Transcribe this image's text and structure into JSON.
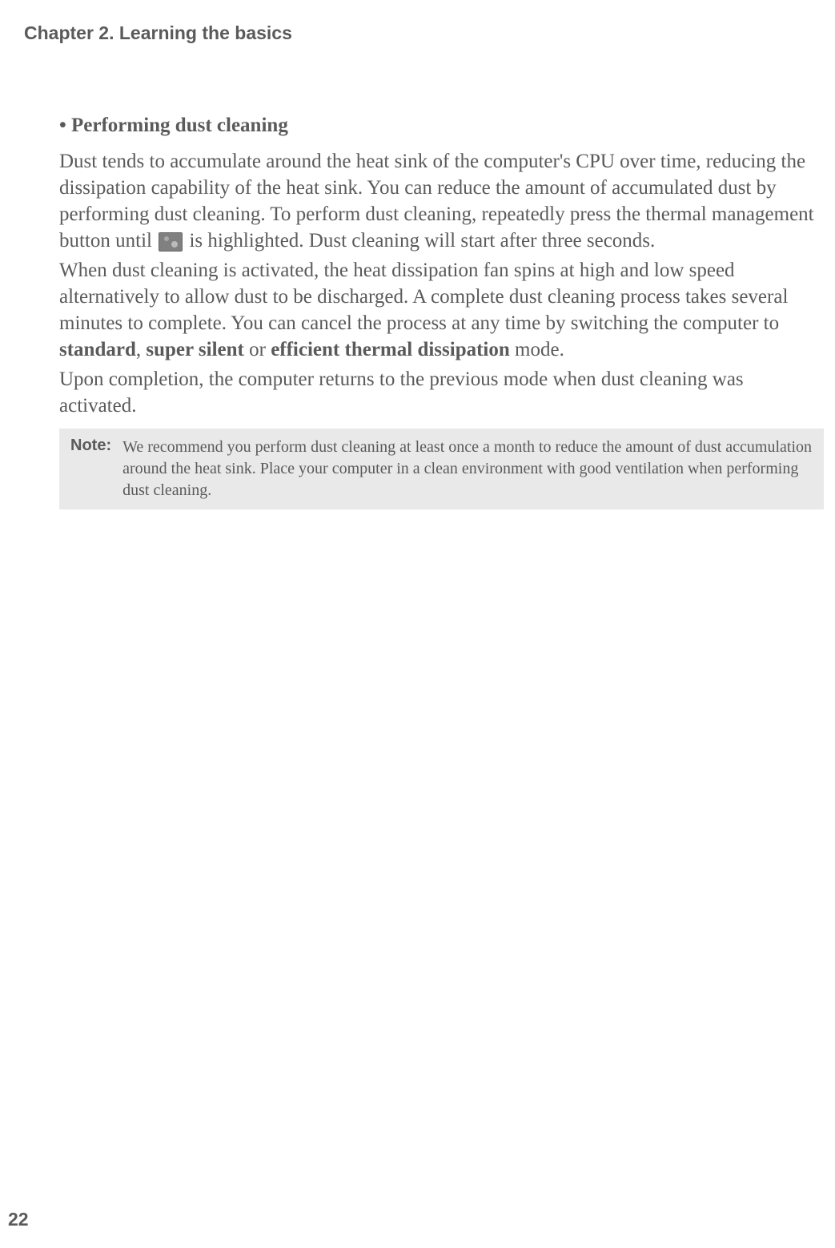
{
  "chapter_header": "Chapter 2. Learning the basics",
  "section": {
    "bullet_heading": "•  Performing dust cleaning",
    "paragraph1_part1": "Dust tends to accumulate around the heat sink of the computer's CPU over time, reducing the dissipation capability of the heat sink. You can reduce the amount of accumulated dust by performing dust cleaning. To perform dust cleaning, repeatedly press the thermal management button until ",
    "paragraph1_part2": " is highlighted. Dust cleaning will start after three seconds.",
    "paragraph2_part1": "When dust cleaning is activated, the heat dissipation fan spins at high and low speed alternatively to allow dust to be discharged. A complete dust cleaning process takes several minutes to complete. You can cancel the process at any time by switching the computer to ",
    "bold_standard": "standard",
    "comma_sep": ", ",
    "bold_super_silent": "super silent",
    "or_text": " or ",
    "bold_efficient": "efficient thermal dissipation",
    "paragraph2_part2": " mode.",
    "paragraph3": "Upon completion, the computer returns to the previous mode when dust cleaning was activated."
  },
  "note": {
    "label": "Note:",
    "text": "We recommend you perform dust cleaning at least once a month to reduce the amount of dust accumulation around the heat sink. Place your computer in a clean environment with good ventilation when performing dust cleaning."
  },
  "page_number": "22",
  "colors": {
    "text": "#5a5a5a",
    "note_bg": "#e9e9e9",
    "page_bg": "#ffffff"
  }
}
